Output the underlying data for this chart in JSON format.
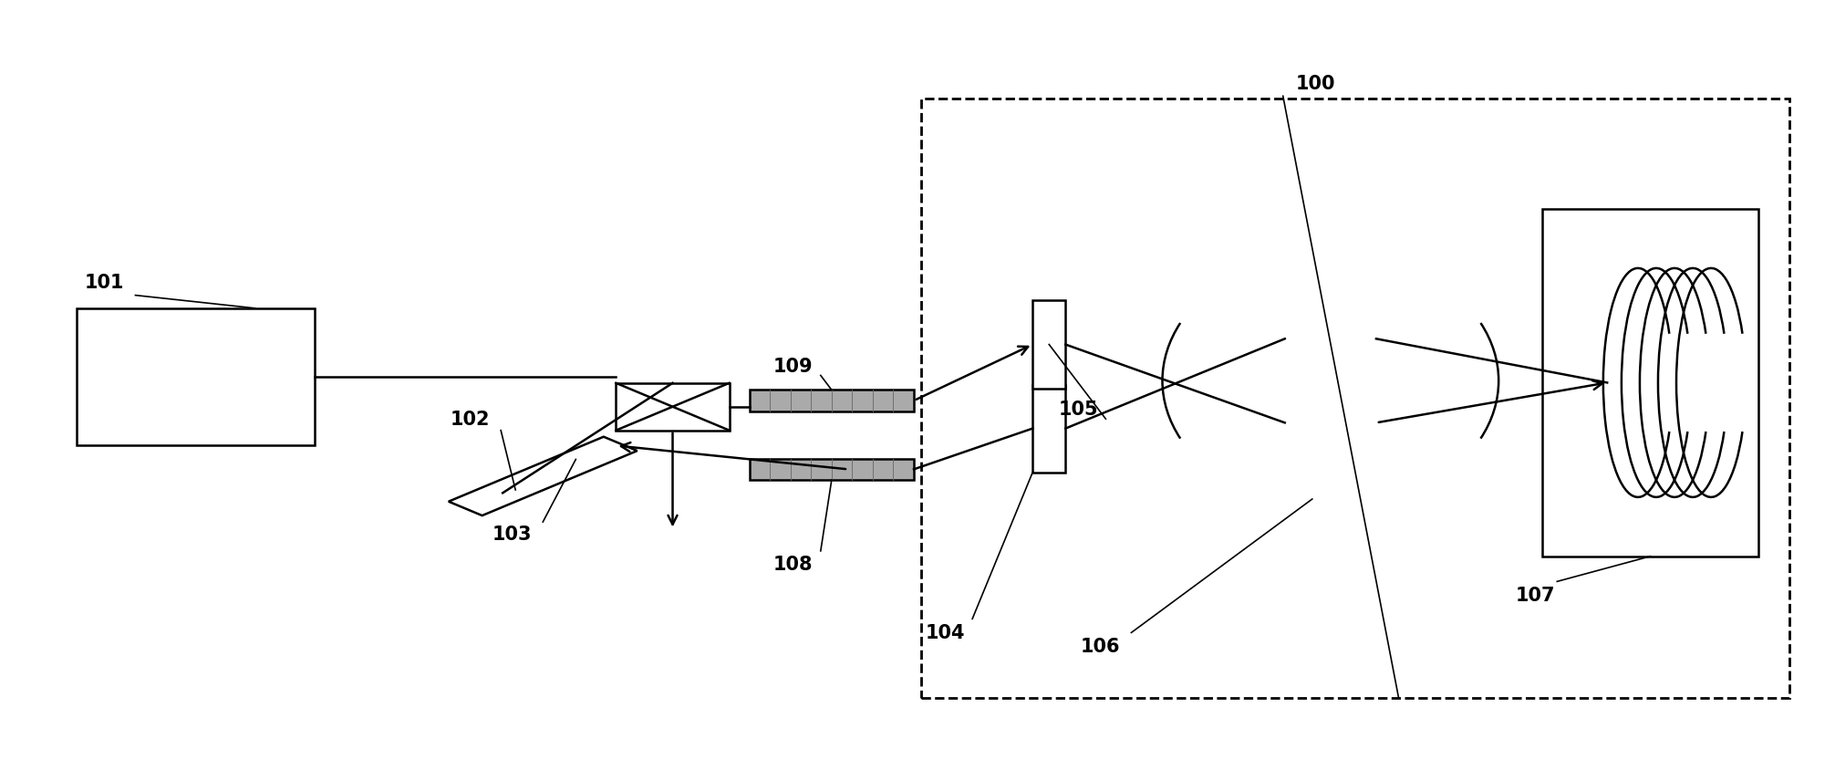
{
  "bg_color": "#ffffff",
  "line_color": "#000000",
  "fig_width": 20.12,
  "fig_height": 8.45,
  "dpi": 100
}
